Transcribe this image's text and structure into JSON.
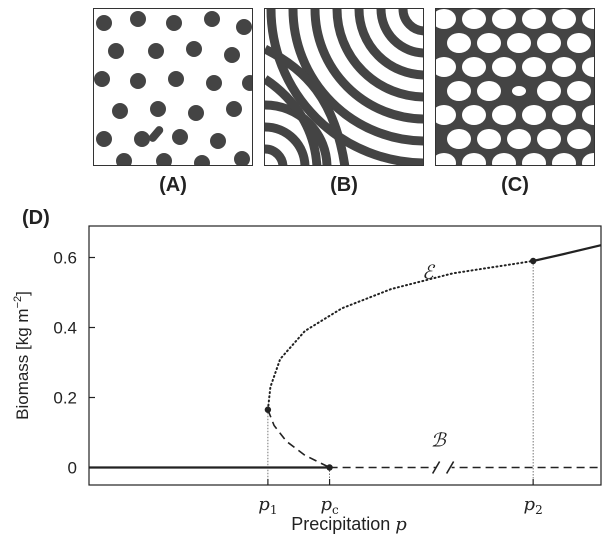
{
  "panels": [
    {
      "label": "(A)",
      "pattern": "spots",
      "description_colors": {
        "background": "#ffffff",
        "feature": "#444444"
      }
    },
    {
      "label": "(B)",
      "pattern": "stripes",
      "description_colors": {
        "background": "#ffffff",
        "feature": "#444444"
      }
    },
    {
      "label": "(C)",
      "pattern": "gaps",
      "description_colors": {
        "background": "#444444",
        "feature": "#ffffff"
      }
    }
  ],
  "panel_d_label": "(D)",
  "chart_data": {
    "type": "line",
    "xlabel": "Precipitation",
    "xlabel_symbol": "p",
    "ylabel": "Biomass [kg m",
    "ylabel_sup": "−2",
    "ylabel_close": "]",
    "ylim": [
      -0.05,
      0.69
    ],
    "yticks": [
      0,
      0.2,
      0.4,
      0.6
    ],
    "ytick_labels": [
      "0",
      "0.2",
      "0.4",
      "0.6"
    ],
    "xticks": [
      {
        "label": "p",
        "sub": "1",
        "x": 1
      },
      {
        "label": "p",
        "sub": "c",
        "x": 1.5
      },
      {
        "label": "p",
        "sub": "2",
        "x": 3.15
      }
    ],
    "xlim": [
      -0.45,
      3.7
    ],
    "axis_break_at": 2.4,
    "annotations": [
      {
        "text": "ℰ",
        "x": 2.25,
        "y": 0.54
      },
      {
        "text": "ℬ",
        "x": 2.32,
        "y": 0.06
      }
    ],
    "points": [
      {
        "x": 1,
        "y": 0.165
      },
      {
        "x": 1.5,
        "y": 0
      },
      {
        "x": 3.15,
        "y": 0.59
      }
    ],
    "series": [
      {
        "style": "solid",
        "points": [
          [
            -0.45,
            0
          ],
          [
            1.5,
            0
          ]
        ]
      },
      {
        "style": "dashed",
        "points": [
          [
            1.5,
            0
          ],
          [
            3.7,
            0
          ]
        ]
      },
      {
        "style": "dashed",
        "points": [
          [
            1,
            0.165
          ],
          [
            1.05,
            0.12
          ],
          [
            1.15,
            0.075
          ],
          [
            1.3,
            0.035
          ],
          [
            1.5,
            0
          ]
        ]
      },
      {
        "style": "dotted",
        "points": [
          [
            1,
            0.165
          ],
          [
            1.02,
            0.23
          ],
          [
            1.1,
            0.31
          ],
          [
            1.3,
            0.39
          ],
          [
            1.6,
            0.455
          ],
          [
            2.0,
            0.51
          ],
          [
            2.5,
            0.555
          ],
          [
            3.15,
            0.59
          ]
        ]
      },
      {
        "style": "solid",
        "points": [
          [
            3.15,
            0.59
          ],
          [
            3.4,
            0.61
          ],
          [
            3.7,
            0.635
          ]
        ]
      }
    ],
    "guides": [
      {
        "x": 1,
        "y": 0.165
      },
      {
        "x": 1.5,
        "y": 0
      },
      {
        "x": 3.15,
        "y": 0.59
      }
    ]
  }
}
